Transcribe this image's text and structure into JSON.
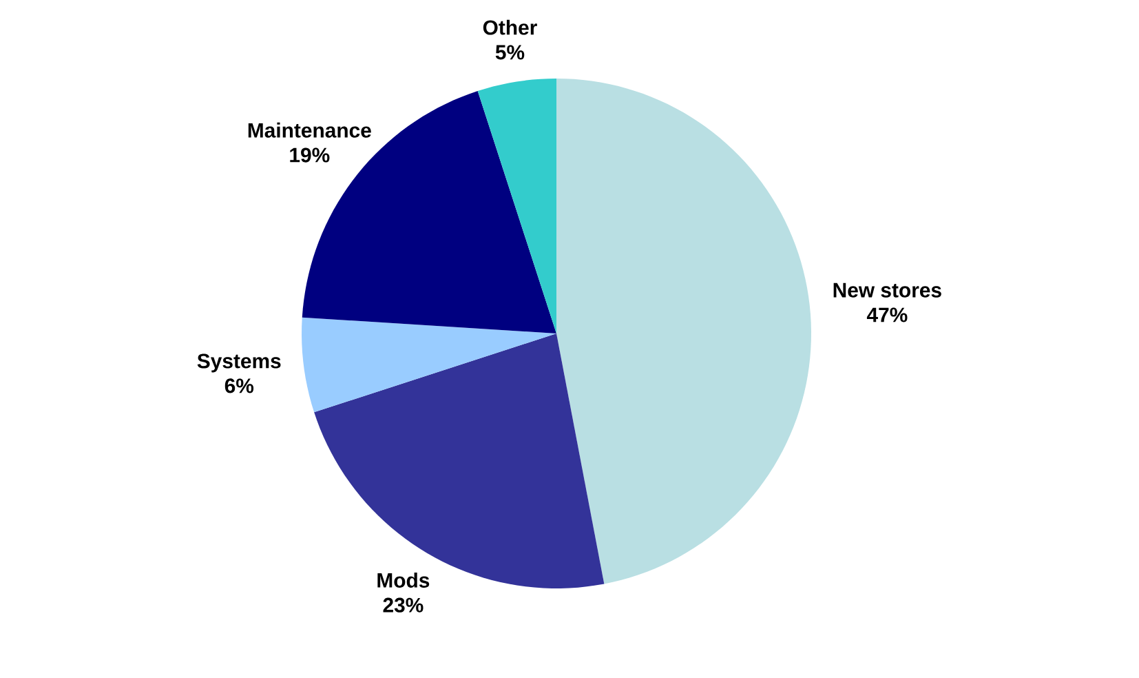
{
  "chart_data": {
    "type": "pie",
    "categories": [
      "New stores",
      "Mods",
      "Systems",
      "Maintenance",
      "Other"
    ],
    "values": [
      47,
      23,
      6,
      19,
      5
    ],
    "value_labels": [
      "47%",
      "23%",
      "6%",
      "19%",
      "5%"
    ],
    "colors": [
      "#b9dfe3",
      "#333399",
      "#99ccff",
      "#000080",
      "#33cccc"
    ]
  }
}
